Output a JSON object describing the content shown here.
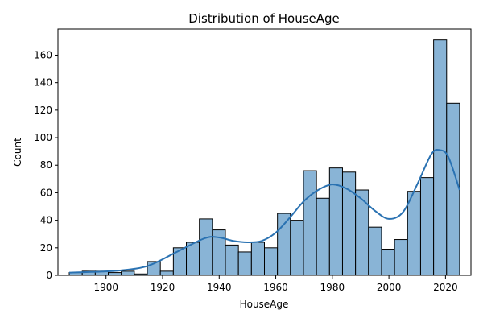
{
  "chart_data": {
    "type": "bar",
    "title": "Distribution of HouseAge",
    "xlabel": "HouseAge",
    "ylabel": "Count",
    "xlim": [
      1883,
      2029
    ],
    "ylim": [
      0,
      179
    ],
    "xticks": [
      1900,
      1920,
      1940,
      1960,
      1980,
      2000,
      2020
    ],
    "yticks": [
      0,
      20,
      40,
      60,
      80,
      100,
      120,
      140,
      160
    ],
    "bins": [
      {
        "x0": 1887.0,
        "x1": 1891.6,
        "count": 2
      },
      {
        "x0": 1891.6,
        "x1": 1896.2,
        "count": 3
      },
      {
        "x0": 1896.2,
        "x1": 1900.8,
        "count": 3
      },
      {
        "x0": 1900.8,
        "x1": 1905.4,
        "count": 2
      },
      {
        "x0": 1905.4,
        "x1": 1910.0,
        "count": 3
      },
      {
        "x0": 1910.0,
        "x1": 1914.6,
        "count": 1
      },
      {
        "x0": 1914.6,
        "x1": 1919.2,
        "count": 10
      },
      {
        "x0": 1919.2,
        "x1": 1923.8,
        "count": 3
      },
      {
        "x0": 1923.8,
        "x1": 1928.4,
        "count": 20
      },
      {
        "x0": 1928.4,
        "x1": 1933.0,
        "count": 24
      },
      {
        "x0": 1933.0,
        "x1": 1937.6,
        "count": 41
      },
      {
        "x0": 1937.6,
        "x1": 1942.2,
        "count": 33
      },
      {
        "x0": 1942.2,
        "x1": 1946.8,
        "count": 22
      },
      {
        "x0": 1946.8,
        "x1": 1951.4,
        "count": 17
      },
      {
        "x0": 1951.4,
        "x1": 1956.0,
        "count": 24
      },
      {
        "x0": 1956.0,
        "x1": 1960.6,
        "count": 20
      },
      {
        "x0": 1960.6,
        "x1": 1965.2,
        "count": 45
      },
      {
        "x0": 1965.2,
        "x1": 1969.8,
        "count": 40
      },
      {
        "x0": 1969.8,
        "x1": 1974.4,
        "count": 76
      },
      {
        "x0": 1974.4,
        "x1": 1979.0,
        "count": 56
      },
      {
        "x0": 1979.0,
        "x1": 1983.6,
        "count": 78
      },
      {
        "x0": 1983.6,
        "x1": 1988.2,
        "count": 75
      },
      {
        "x0": 1988.2,
        "x1": 1992.8,
        "count": 62
      },
      {
        "x0": 1992.8,
        "x1": 1997.4,
        "count": 35
      },
      {
        "x0": 1997.4,
        "x1": 2002.0,
        "count": 19
      },
      {
        "x0": 2002.0,
        "x1": 2006.6,
        "count": 26
      },
      {
        "x0": 2006.6,
        "x1": 2011.2,
        "count": 61
      },
      {
        "x0": 2011.2,
        "x1": 2015.8,
        "count": 71
      },
      {
        "x0": 2015.8,
        "x1": 2020.4,
        "count": 171
      },
      {
        "x0": 2020.4,
        "x1": 2025.0,
        "count": 125
      }
    ],
    "kde": {
      "x": [
        1887,
        1895,
        1905,
        1915,
        1925,
        1935,
        1940,
        1945,
        1950,
        1955,
        1960,
        1965,
        1970,
        1975,
        1980,
        1985,
        1990,
        1995,
        2000,
        2005,
        2010,
        2015,
        2018,
        2021,
        2025
      ],
      "y": [
        2,
        2.5,
        3.5,
        7,
        17,
        27,
        27.5,
        25,
        24,
        25,
        31,
        42,
        54,
        62,
        66,
        63,
        56,
        47,
        41,
        46,
        66,
        88,
        91,
        86,
        62
      ]
    },
    "colors": {
      "bar_fill": "#89b4d6",
      "bar_edge": "#000000",
      "kde_line": "#2a72b2"
    },
    "grid": false
  }
}
